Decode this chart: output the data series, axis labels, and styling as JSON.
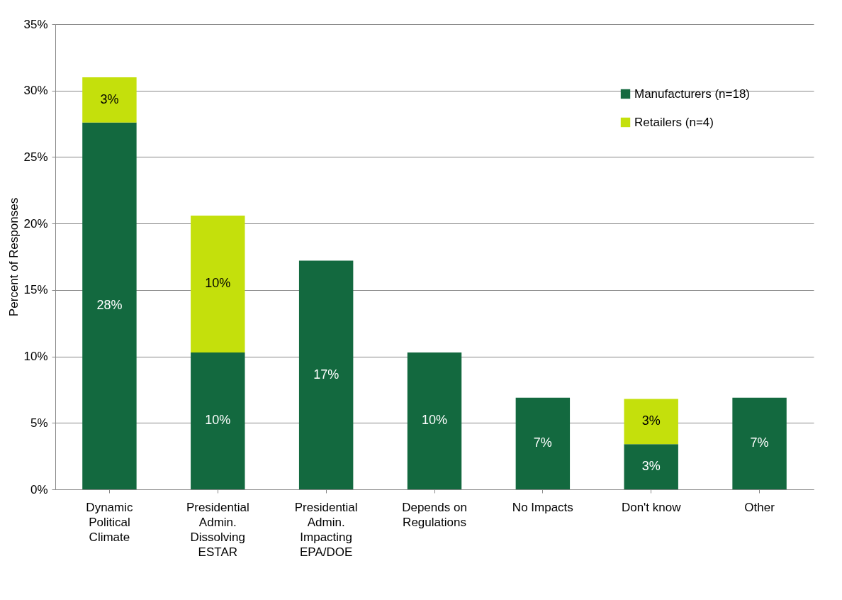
{
  "chart_data": {
    "type": "bar",
    "stacked": true,
    "ylabel": "Percent of Responses",
    "categories": [
      "Dynamic Political Climate",
      "Presidential Admin. Dissolving ESTAR",
      "Presidential Admin. Impacting EPA/DOE",
      "Depends on Regulations",
      "No Impacts",
      "Don't know",
      "Other"
    ],
    "series": [
      {
        "name": "Manufacturers (n=18)",
        "color": "#13693f",
        "values": [
          27.6,
          10.3,
          17.2,
          10.3,
          6.9,
          3.4,
          6.9
        ],
        "value_labels": [
          "28%",
          "10%",
          "17%",
          "10%",
          "7%",
          "3%",
          "7%"
        ]
      },
      {
        "name": "Retailers (n=4)",
        "color": "#c4e00c",
        "values": [
          3.4,
          10.3,
          null,
          null,
          null,
          3.4,
          null
        ],
        "value_labels": [
          "3%",
          "10%",
          null,
          null,
          null,
          "3%",
          null
        ]
      }
    ],
    "ylim": [
      0,
      35
    ],
    "yticks": [
      {
        "value": 0,
        "label": "0%"
      },
      {
        "value": 5,
        "label": "5%"
      },
      {
        "value": 10,
        "label": "10%"
      },
      {
        "value": 15,
        "label": "15%"
      },
      {
        "value": 20,
        "label": "20%"
      },
      {
        "value": 25,
        "label": "25%"
      },
      {
        "value": 30,
        "label": "30%"
      },
      {
        "value": 35,
        "label": "35%"
      }
    ],
    "grid": "y",
    "legend": "top right"
  }
}
